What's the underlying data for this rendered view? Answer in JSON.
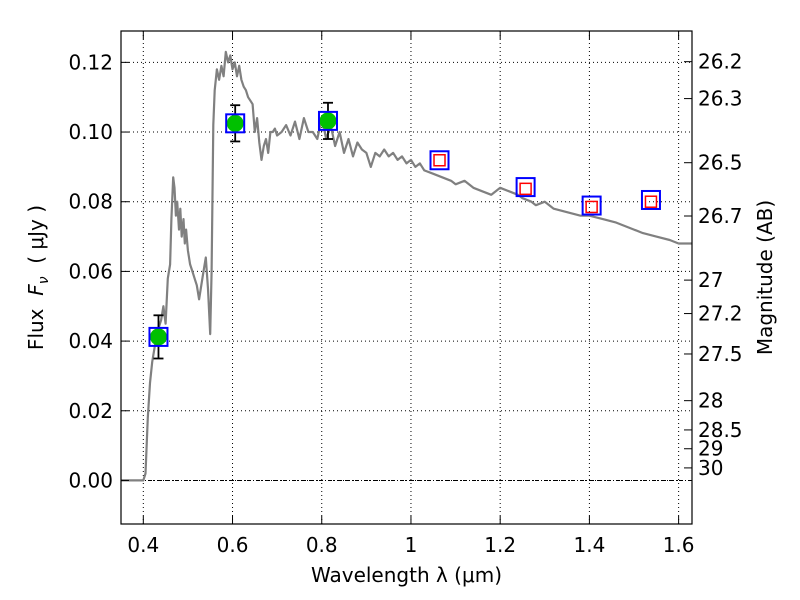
{
  "chart_data": {
    "type": "line",
    "xlabel": "Wavelength  λ (μm)",
    "ylabel_prefix": "Flux  ",
    "ylabel_symbol": "F",
    "ylabel_sub": "ν",
    "ylabel_suffix": "  ( μJy )",
    "y2label": "Magnitude (AB)",
    "xlim": [
      0.35,
      1.63
    ],
    "ylim": [
      -0.0125,
      0.129
    ],
    "grid": true,
    "x_ticks": [
      {
        "value": 0.4,
        "label": "0.4"
      },
      {
        "value": 0.6,
        "label": "0.6"
      },
      {
        "value": 0.8,
        "label": "0.8"
      },
      {
        "value": 1.0,
        "label": "1"
      },
      {
        "value": 1.2,
        "label": "1.2"
      },
      {
        "value": 1.4,
        "label": "1.4"
      },
      {
        "value": 1.6,
        "label": "1.6"
      }
    ],
    "y_ticks": [
      {
        "value": 0.0,
        "label": "0.00"
      },
      {
        "value": 0.02,
        "label": "0.02"
      },
      {
        "value": 0.04,
        "label": "0.04"
      },
      {
        "value": 0.06,
        "label": "0.06"
      },
      {
        "value": 0.08,
        "label": "0.08"
      },
      {
        "value": 0.1,
        "label": "0.10"
      },
      {
        "value": 0.12,
        "label": "0.12"
      }
    ],
    "magnitude_ticks": [
      {
        "label": "26.2",
        "flux": 0.1202
      },
      {
        "label": "26.3",
        "flux": 0.1096
      },
      {
        "label": "26.5",
        "flux": 0.0912
      },
      {
        "label": "26.7",
        "flux": 0.0759
      },
      {
        "label": "27",
        "flux": 0.0575
      },
      {
        "label": "27.2",
        "flux": 0.0479
      },
      {
        "label": "27.5",
        "flux": 0.0363
      },
      {
        "label": "28",
        "flux": 0.0229
      },
      {
        "label": "28.5",
        "flux": 0.0145
      },
      {
        "label": "29",
        "flux": 0.0091
      },
      {
        "label": "30",
        "flux": 0.0036
      }
    ],
    "series": [
      {
        "name": "model_sed",
        "style": "line",
        "color": "#808080",
        "points": [
          [
            0.35,
            0.0
          ],
          [
            0.4,
            0.0
          ],
          [
            0.405,
            0.002
          ],
          [
            0.41,
            0.018
          ],
          [
            0.415,
            0.028
          ],
          [
            0.42,
            0.034
          ],
          [
            0.425,
            0.038
          ],
          [
            0.43,
            0.042
          ],
          [
            0.435,
            0.044
          ],
          [
            0.44,
            0.046
          ],
          [
            0.445,
            0.05
          ],
          [
            0.45,
            0.045
          ],
          [
            0.455,
            0.058
          ],
          [
            0.46,
            0.062
          ],
          [
            0.463,
            0.075
          ],
          [
            0.467,
            0.087
          ],
          [
            0.47,
            0.084
          ],
          [
            0.473,
            0.076
          ],
          [
            0.476,
            0.08
          ],
          [
            0.48,
            0.072
          ],
          [
            0.483,
            0.078
          ],
          [
            0.486,
            0.07
          ],
          [
            0.49,
            0.075
          ],
          [
            0.493,
            0.068
          ],
          [
            0.496,
            0.072
          ],
          [
            0.5,
            0.066
          ],
          [
            0.505,
            0.062
          ],
          [
            0.51,
            0.06
          ],
          [
            0.515,
            0.058
          ],
          [
            0.52,
            0.056
          ],
          [
            0.525,
            0.052
          ],
          [
            0.53,
            0.056
          ],
          [
            0.535,
            0.06
          ],
          [
            0.54,
            0.064
          ],
          [
            0.545,
            0.055
          ],
          [
            0.55,
            0.042
          ],
          [
            0.553,
            0.06
          ],
          [
            0.557,
            0.102
          ],
          [
            0.56,
            0.112
          ],
          [
            0.565,
            0.118
          ],
          [
            0.57,
            0.115
          ],
          [
            0.575,
            0.119
          ],
          [
            0.58,
            0.116
          ],
          [
            0.585,
            0.123
          ],
          [
            0.59,
            0.12
          ],
          [
            0.595,
            0.122
          ],
          [
            0.6,
            0.118
          ],
          [
            0.605,
            0.12
          ],
          [
            0.61,
            0.116
          ],
          [
            0.615,
            0.119
          ],
          [
            0.62,
            0.115
          ],
          [
            0.625,
            0.113
          ],
          [
            0.63,
            0.112
          ],
          [
            0.635,
            0.11
          ],
          [
            0.64,
            0.109
          ],
          [
            0.645,
            0.108
          ],
          [
            0.65,
            0.1
          ],
          [
            0.655,
            0.104
          ],
          [
            0.66,
            0.097
          ],
          [
            0.665,
            0.092
          ],
          [
            0.67,
            0.096
          ],
          [
            0.675,
            0.098
          ],
          [
            0.68,
            0.094
          ],
          [
            0.685,
            0.1
          ],
          [
            0.69,
            0.1
          ],
          [
            0.695,
            0.101
          ],
          [
            0.7,
            0.099
          ],
          [
            0.71,
            0.1
          ],
          [
            0.72,
            0.102
          ],
          [
            0.73,
            0.099
          ],
          [
            0.74,
            0.103
          ],
          [
            0.75,
            0.098
          ],
          [
            0.76,
            0.104
          ],
          [
            0.77,
            0.1
          ],
          [
            0.78,
            0.1
          ],
          [
            0.79,
            0.098
          ],
          [
            0.8,
            0.104
          ],
          [
            0.81,
            0.098
          ],
          [
            0.82,
            0.102
          ],
          [
            0.83,
            0.096
          ],
          [
            0.84,
            0.1
          ],
          [
            0.85,
            0.094
          ],
          [
            0.86,
            0.098
          ],
          [
            0.87,
            0.093
          ],
          [
            0.88,
            0.097
          ],
          [
            0.89,
            0.095
          ],
          [
            0.9,
            0.094
          ],
          [
            0.91,
            0.09
          ],
          [
            0.92,
            0.094
          ],
          [
            0.93,
            0.093
          ],
          [
            0.94,
            0.095
          ],
          [
            0.95,
            0.093
          ],
          [
            0.96,
            0.094
          ],
          [
            0.97,
            0.092
          ],
          [
            0.98,
            0.093
          ],
          [
            0.99,
            0.091
          ],
          [
            1.0,
            0.092
          ],
          [
            1.01,
            0.09
          ],
          [
            1.02,
            0.091
          ],
          [
            1.03,
            0.089
          ],
          [
            1.05,
            0.088
          ],
          [
            1.07,
            0.087
          ],
          [
            1.09,
            0.086
          ],
          [
            1.1,
            0.085
          ],
          [
            1.12,
            0.086
          ],
          [
            1.14,
            0.084
          ],
          [
            1.16,
            0.083
          ],
          [
            1.18,
            0.082
          ],
          [
            1.2,
            0.084
          ],
          [
            1.22,
            0.083
          ],
          [
            1.24,
            0.082
          ],
          [
            1.25,
            0.081
          ],
          [
            1.27,
            0.08
          ],
          [
            1.28,
            0.079
          ],
          [
            1.3,
            0.08
          ],
          [
            1.32,
            0.078
          ],
          [
            1.35,
            0.077
          ],
          [
            1.38,
            0.076
          ],
          [
            1.4,
            0.076
          ],
          [
            1.43,
            0.075
          ],
          [
            1.46,
            0.074
          ],
          [
            1.5,
            0.072
          ],
          [
            1.52,
            0.071
          ],
          [
            1.55,
            0.07
          ],
          [
            1.58,
            0.069
          ],
          [
            1.6,
            0.068
          ],
          [
            1.63,
            0.068
          ]
        ]
      },
      {
        "name": "observed_photometry",
        "style": "markers_errorbars",
        "color": "#00c000",
        "points": [
          {
            "x": 0.434,
            "y": 0.0412,
            "err": 0.0062
          },
          {
            "x": 0.606,
            "y": 0.1025,
            "err": 0.0052
          },
          {
            "x": 0.814,
            "y": 0.1032,
            "err": 0.0052
          }
        ]
      },
      {
        "name": "model_photometry",
        "style": "open_squares",
        "color": "#0000ff",
        "points": [
          {
            "x": 0.434,
            "y": 0.0412
          },
          {
            "x": 0.606,
            "y": 0.1025
          },
          {
            "x": 0.814,
            "y": 0.1032
          },
          {
            "x": 1.064,
            "y": 0.0919
          },
          {
            "x": 1.257,
            "y": 0.0842
          },
          {
            "x": 1.405,
            "y": 0.0789
          },
          {
            "x": 1.538,
            "y": 0.0805
          }
        ]
      },
      {
        "name": "upper_limits",
        "style": "small_open_squares",
        "color": "#ff0000",
        "points": [
          {
            "x": 1.064,
            "y": 0.0919
          },
          {
            "x": 1.257,
            "y": 0.0837
          },
          {
            "x": 1.405,
            "y": 0.0785
          },
          {
            "x": 1.538,
            "y": 0.08
          }
        ]
      }
    ]
  }
}
